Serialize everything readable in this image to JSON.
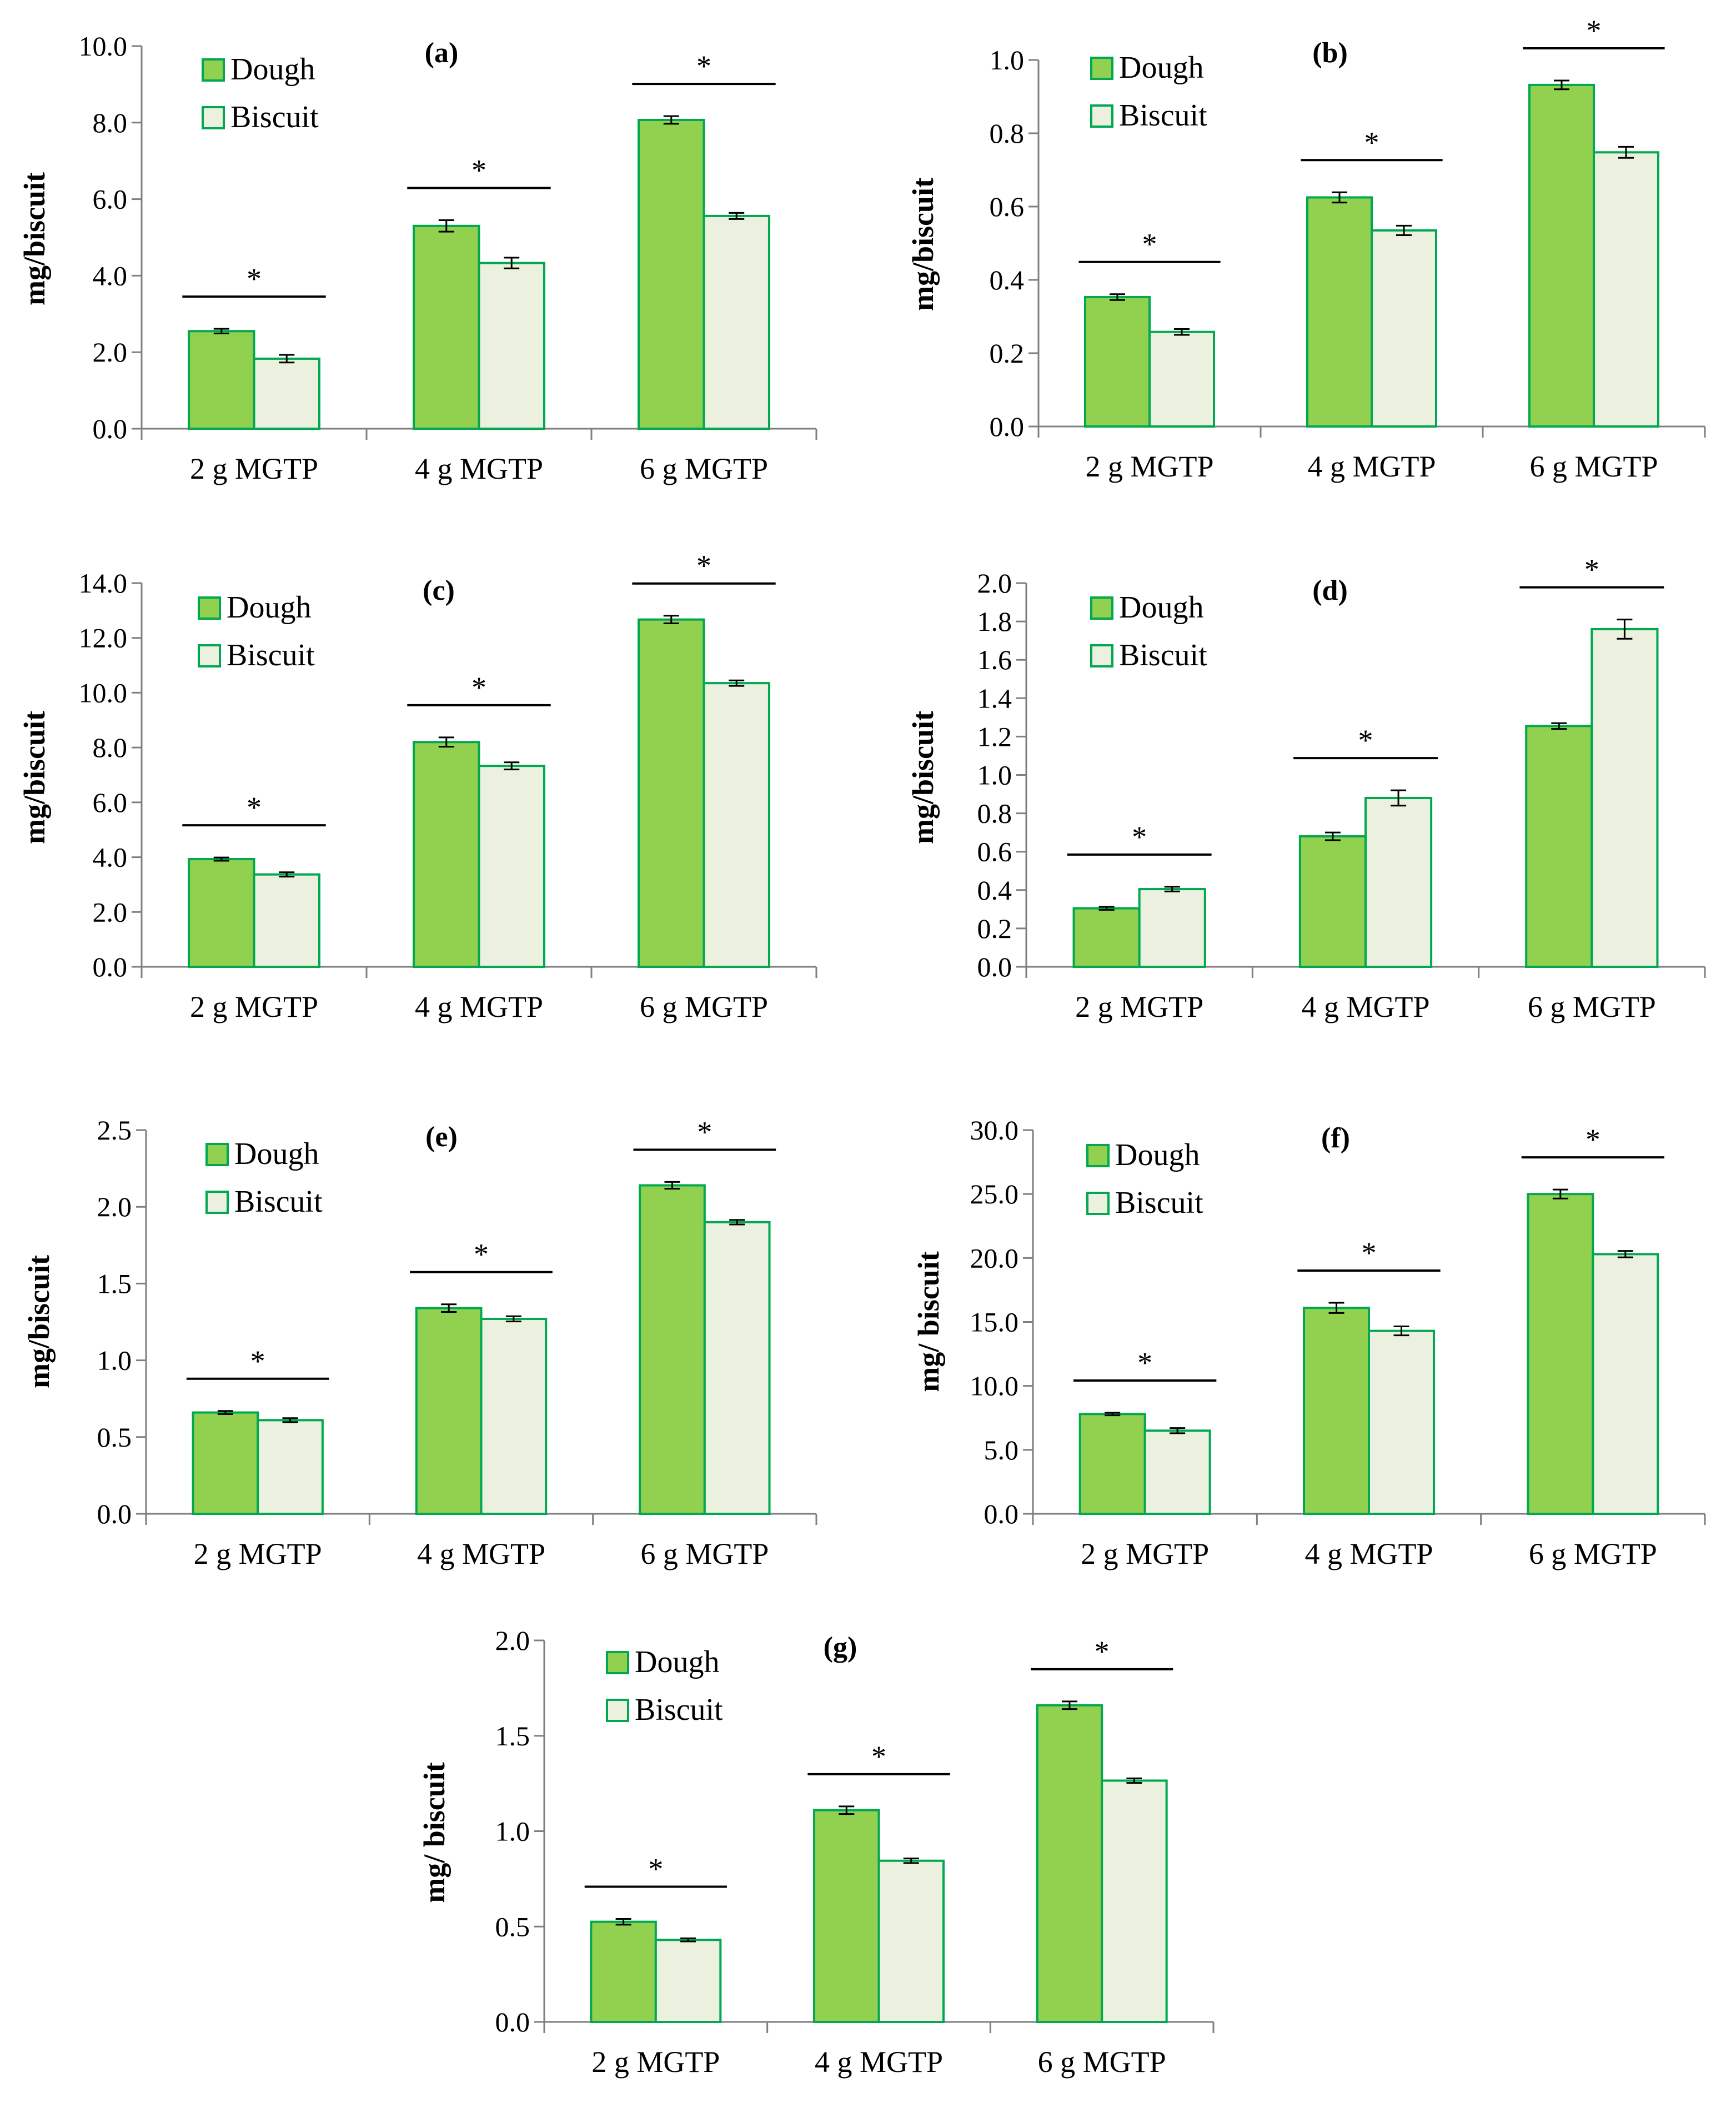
{
  "colors": {
    "dough": "#92d050",
    "biscuit": "#ebf1de",
    "edge": "#00a84f",
    "axis": "#7f7f7f",
    "text": "#000000"
  },
  "legend": {
    "dough": "Dough",
    "biscuit": "Biscuit"
  },
  "significance_mark": "*",
  "chart_data": [
    {
      "type": "bar",
      "title": "(a)",
      "ylabel": "mg/biscuit",
      "categories": [
        "2 g MGTP",
        "4 g MGTP",
        "6 g MGTP"
      ],
      "ylim": [
        0,
        10
      ],
      "yticks": [
        "0.0",
        "2.0",
        "4.0",
        "6.0",
        "8.0",
        "10.0"
      ],
      "series": [
        {
          "name": "Dough",
          "values": [
            2.55,
            5.3,
            8.07
          ],
          "errors": [
            0.06,
            0.15,
            0.1
          ]
        },
        {
          "name": "Biscuit",
          "values": [
            1.83,
            4.33,
            5.56
          ],
          "errors": [
            0.1,
            0.14,
            0.08
          ]
        }
      ],
      "significance": [
        "*",
        "*",
        "*"
      ]
    },
    {
      "type": "bar",
      "title": "(b)",
      "ylabel": "mg/biscuit",
      "categories": [
        "2 g MGTP",
        "4 g MGTP",
        "6 g MGTP"
      ],
      "ylim": [
        0,
        1
      ],
      "yticks": [
        "0.0",
        "0.2",
        "0.4",
        "0.6",
        "0.8",
        "1.0"
      ],
      "series": [
        {
          "name": "Dough",
          "values": [
            0.353,
            0.625,
            0.932
          ],
          "errors": [
            0.008,
            0.014,
            0.012
          ]
        },
        {
          "name": "Biscuit",
          "values": [
            0.258,
            0.535,
            0.748
          ],
          "errors": [
            0.008,
            0.013,
            0.015
          ]
        }
      ],
      "significance": [
        "*",
        "*",
        "*"
      ]
    },
    {
      "type": "bar",
      "title": "(c)",
      "ylabel": "mg/biscuit",
      "categories": [
        "2 g MGTP",
        "4 g MGTP",
        "6 g MGTP"
      ],
      "ylim": [
        0,
        14
      ],
      "yticks": [
        "0.0",
        "2.0",
        "4.0",
        "6.0",
        "8.0",
        "10.0",
        "12.0",
        "14.0"
      ],
      "series": [
        {
          "name": "Dough",
          "values": [
            3.93,
            8.2,
            12.67
          ],
          "errors": [
            0.06,
            0.17,
            0.14
          ]
        },
        {
          "name": "Biscuit",
          "values": [
            3.37,
            7.33,
            10.35
          ],
          "errors": [
            0.08,
            0.13,
            0.1
          ]
        }
      ],
      "significance": [
        "*",
        "*",
        "*"
      ]
    },
    {
      "type": "bar",
      "title": "(d)",
      "ylabel": "mg/biscuit",
      "categories": [
        "2 g MGTP",
        "4 g MGTP",
        "6 g MGTP"
      ],
      "ylim": [
        0,
        2
      ],
      "yticks": [
        "0.0",
        "0.2",
        "0.4",
        "0.6",
        "0.8",
        "1.0",
        "1.2",
        "1.4",
        "1.6",
        "1.8",
        "2.0"
      ],
      "series": [
        {
          "name": "Dough",
          "values": [
            0.305,
            0.68,
            1.255
          ],
          "errors": [
            0.008,
            0.02,
            0.015
          ]
        },
        {
          "name": "Biscuit",
          "values": [
            0.405,
            0.88,
            1.76
          ],
          "errors": [
            0.012,
            0.04,
            0.05
          ]
        }
      ],
      "significance": [
        "*",
        "*",
        "*"
      ]
    },
    {
      "type": "bar",
      "title": "(e)",
      "ylabel": "mg/biscuit",
      "categories": [
        "2 g MGTP",
        "4 g MGTP",
        "6 g MGTP"
      ],
      "ylim": [
        0,
        2.5
      ],
      "yticks": [
        "0.0",
        "0.5",
        "1.0",
        "1.5",
        "2.0",
        "2.5"
      ],
      "series": [
        {
          "name": "Dough",
          "values": [
            0.66,
            1.34,
            2.14
          ],
          "errors": [
            0.01,
            0.025,
            0.022
          ]
        },
        {
          "name": "Biscuit",
          "values": [
            0.61,
            1.27,
            1.9
          ],
          "errors": [
            0.013,
            0.017,
            0.015
          ]
        }
      ],
      "significance": [
        "*",
        "*",
        "*"
      ]
    },
    {
      "type": "bar",
      "title": "(f)",
      "ylabel": "mg/ biscuit",
      "categories": [
        "2 g MGTP",
        "4 g MGTP",
        "6 g MGTP"
      ],
      "ylim": [
        0,
        30
      ],
      "yticks": [
        "0.0",
        "5.0",
        "10.0",
        "15.0",
        "20.0",
        "25.0",
        "30.0"
      ],
      "series": [
        {
          "name": "Dough",
          "values": [
            7.8,
            16.1,
            25.0
          ],
          "errors": [
            0.1,
            0.4,
            0.35
          ]
        },
        {
          "name": "Biscuit",
          "values": [
            6.5,
            14.3,
            20.3
          ],
          "errors": [
            0.2,
            0.35,
            0.25
          ]
        }
      ],
      "significance": [
        "*",
        "*",
        "*"
      ]
    },
    {
      "type": "bar",
      "title": "(g)",
      "ylabel": "mg/ biscuit",
      "categories": [
        "2 g MGTP",
        "4 g MGTP",
        "6 g MGTP"
      ],
      "ylim": [
        0,
        2
      ],
      "yticks": [
        "0.0",
        "0.5",
        "1.0",
        "1.5",
        "2.0"
      ],
      "series": [
        {
          "name": "Dough",
          "values": [
            0.525,
            1.11,
            1.66
          ],
          "errors": [
            0.015,
            0.02,
            0.02
          ]
        },
        {
          "name": "Biscuit",
          "values": [
            0.43,
            0.845,
            1.265
          ],
          "errors": [
            0.008,
            0.012,
            0.012
          ]
        }
      ],
      "significance": [
        "*",
        "*",
        "*"
      ]
    }
  ]
}
